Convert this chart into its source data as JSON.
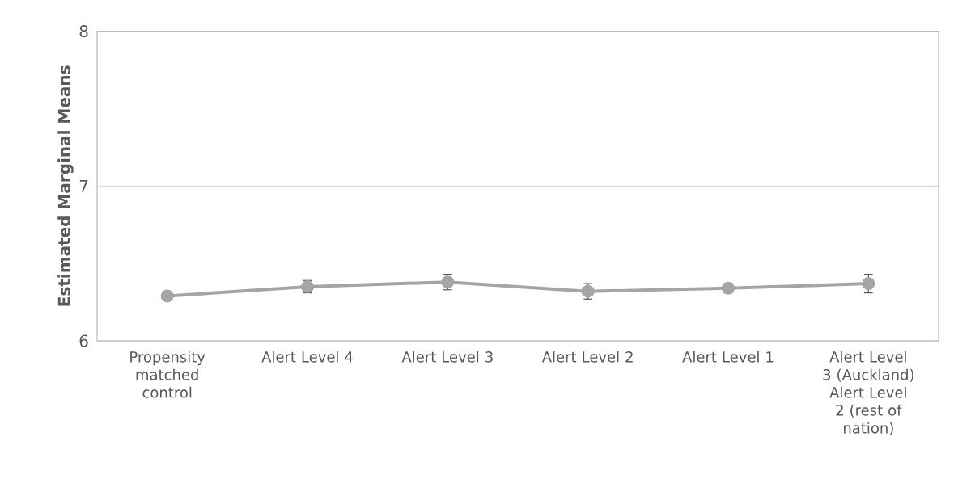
{
  "chart_data": {
    "type": "line",
    "ylabel": "Estimated Marginal Means",
    "categories": [
      "Propensity matched control",
      "Alert Level 4",
      "Alert Level 3",
      "Alert Level 2",
      "Alert Level 1",
      "Alert Level 3 (Auckland) Alert Level 2 (rest of nation)"
    ],
    "series": [
      {
        "color": "#a5a5a5",
        "values": [
          6.29,
          6.35,
          6.38,
          6.32,
          6.34,
          6.37
        ],
        "errors": [
          null,
          0.04,
          0.05,
          0.05,
          0.03,
          0.06
        ]
      }
    ],
    "ylim": [
      6,
      8
    ],
    "yticks": [
      6,
      7,
      8
    ],
    "grid": "y",
    "marker": "circle",
    "line_style": "solid"
  }
}
